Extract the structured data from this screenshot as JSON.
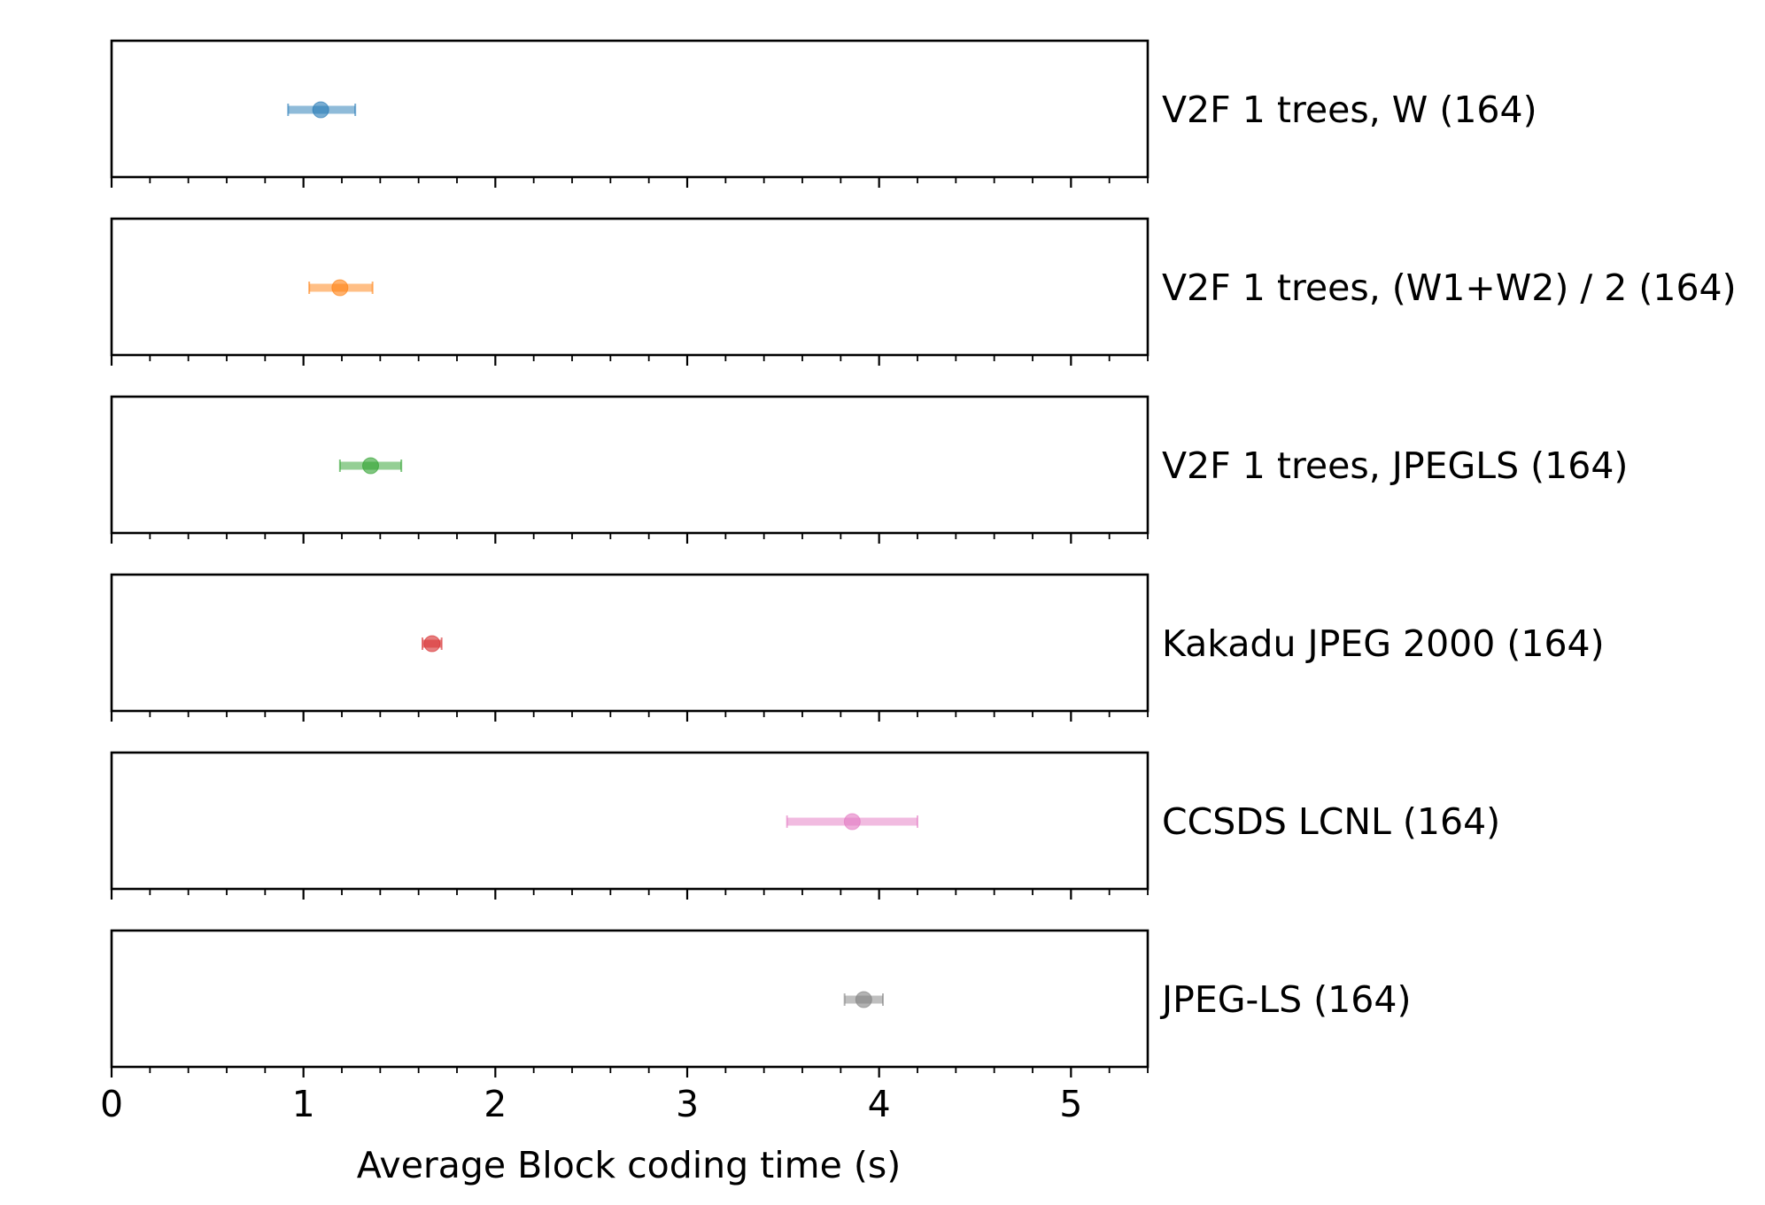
{
  "chart_data": {
    "type": "errorbar",
    "xlabel": "Average Block coding time (s)",
    "xlim": [
      0,
      5.4
    ],
    "x_ticks": [
      0,
      1,
      2,
      3,
      4,
      5
    ],
    "x_tick_labels": [
      "0",
      "1",
      "2",
      "3",
      "4",
      "5"
    ],
    "minor_tick_step": 0.2,
    "grid": false,
    "series": [
      {
        "name": "V2F 1 trees, W (164)",
        "value": 1.09,
        "err_low": 0.92,
        "err_high": 1.27,
        "color": "#1f77b4"
      },
      {
        "name": "V2F 1 trees, (W1+W2) / 2 (164)",
        "value": 1.19,
        "err_low": 1.03,
        "err_high": 1.36,
        "color": "#ff7f0e"
      },
      {
        "name": "V2F 1 trees, JPEGLS (164)",
        "value": 1.35,
        "err_low": 1.19,
        "err_high": 1.51,
        "color": "#2ca02c"
      },
      {
        "name": "Kakadu JPEG 2000 (164)",
        "value": 1.67,
        "err_low": 1.62,
        "err_high": 1.72,
        "color": "#d62728"
      },
      {
        "name": "CCSDS LCNL (164)",
        "value": 3.86,
        "err_low": 3.52,
        "err_high": 4.2,
        "color": "#e377c2"
      },
      {
        "name": "JPEG-LS (164)",
        "value": 3.92,
        "err_low": 3.82,
        "err_high": 4.02,
        "color": "#7f7f7f"
      }
    ]
  }
}
